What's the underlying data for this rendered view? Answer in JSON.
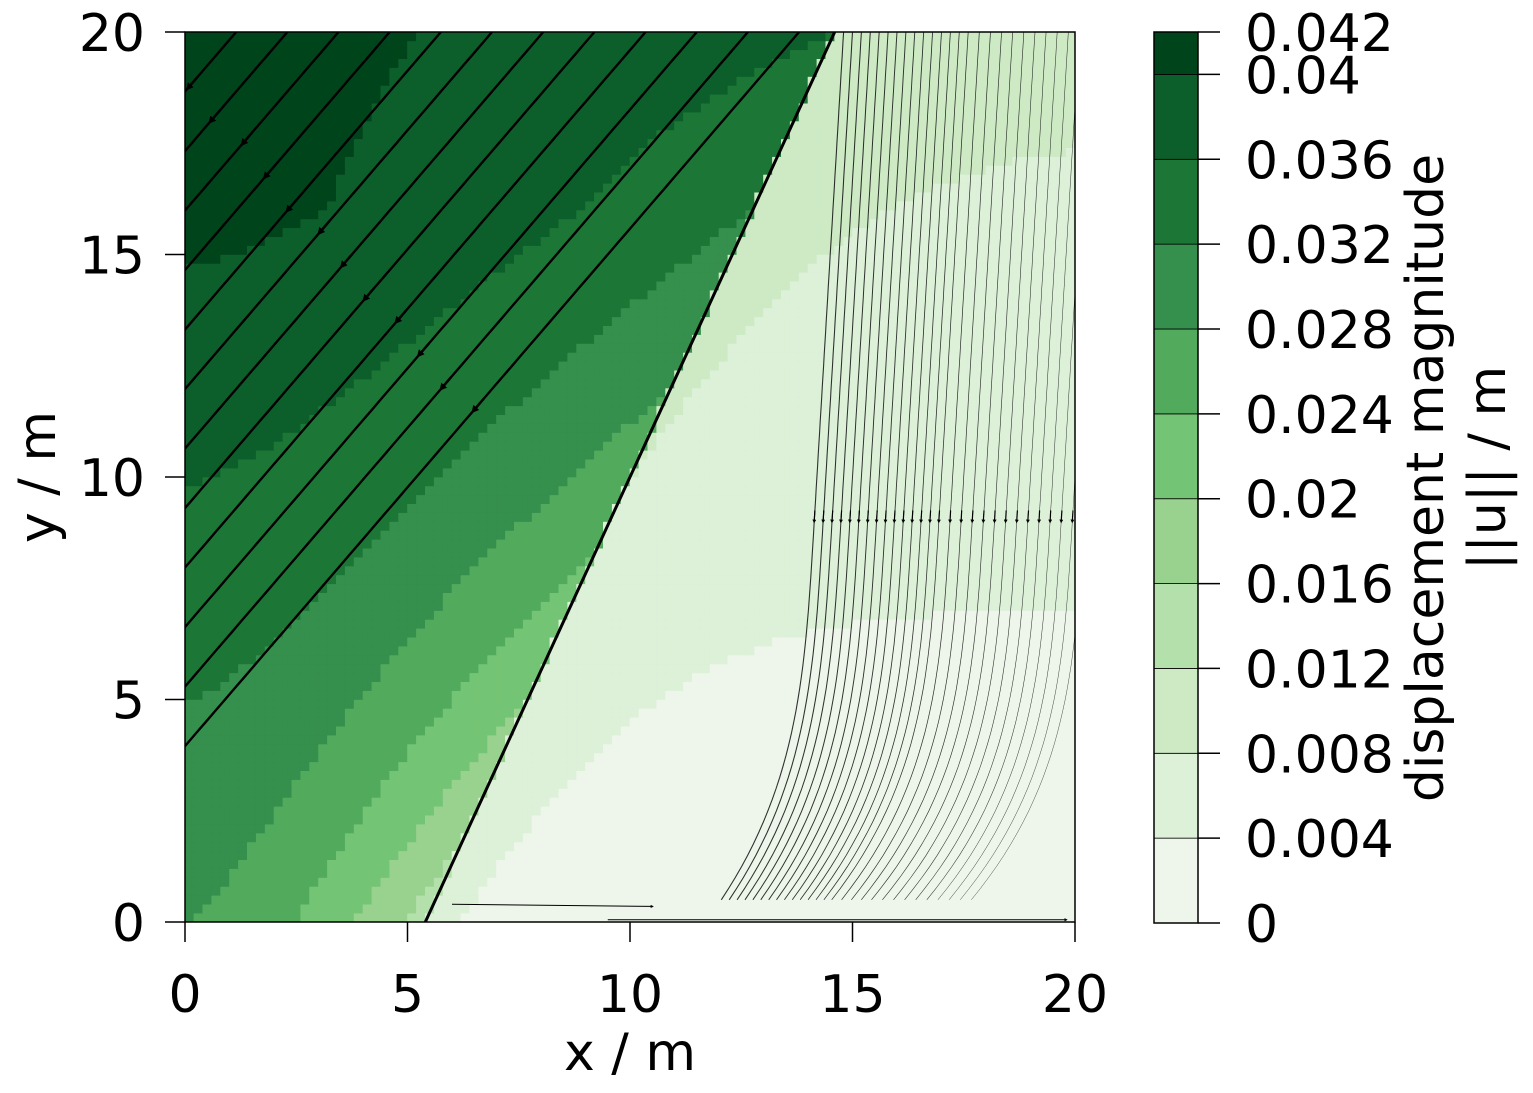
{
  "chart_data": {
    "type": "contour",
    "xlabel": "x / m",
    "ylabel": "y / m",
    "xlim": [
      0,
      20
    ],
    "ylim": [
      0,
      20
    ],
    "x_ticks": [
      "0",
      "5",
      "10",
      "15",
      "20"
    ],
    "y_ticks": [
      "0",
      "5",
      "10",
      "15",
      "20"
    ],
    "fault_line": {
      "x": [
        5.4,
        14.6
      ],
      "y": [
        0,
        20
      ]
    },
    "colorbar": {
      "label_line1": "displacement magnitude",
      "label_line2": "||u|| / m",
      "levels": [
        0,
        0.004,
        0.008,
        0.012,
        0.016,
        0.02,
        0.024,
        0.028,
        0.032,
        0.036,
        0.04,
        0.042
      ],
      "tick_labels": [
        "0",
        "0.004",
        "0.008",
        "0.012",
        "0.016",
        "0.02",
        "0.024",
        "0.028",
        "0.032",
        "0.036",
        "0.04",
        "0.042"
      ],
      "colors": [
        "#eef5ea",
        "#ddf1d9",
        "#cdeac5",
        "#b4e0ac",
        "#98d28e",
        "#74c475",
        "#52aa5d",
        "#358f4d",
        "#1c7737",
        "#0c5f2a",
        "#00441b"
      ]
    },
    "displacement_approx": {
      "left_block_at_top_left": 0.041,
      "left_block_near_fault_bottom": 0.014,
      "right_block_top": 0.009,
      "right_block_bottom": 0.002
    },
    "streamlines": "displacement direction field, flowing downward toward the lower left; dense and thick in the left block, thin and sparse in the right block"
  }
}
